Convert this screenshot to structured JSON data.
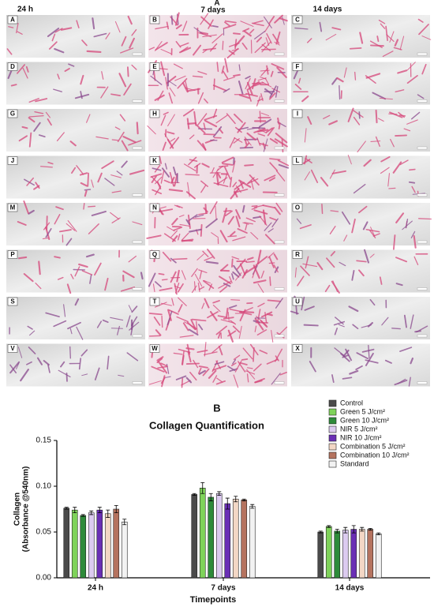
{
  "panel_a": {
    "label": "A",
    "columns": [
      "24 h",
      "7 days",
      "14 days"
    ],
    "tiles": [
      "A",
      "B",
      "C",
      "D",
      "E",
      "F",
      "G",
      "H",
      "I",
      "J",
      "K",
      "L",
      "M",
      "N",
      "O",
      "P",
      "Q",
      "R",
      "S",
      "T",
      "U",
      "V",
      "W",
      "X"
    ]
  },
  "chart_data": {
    "type": "bar",
    "panel_label": "B",
    "title": "Collagen Quantification",
    "ylabel": [
      "Collagen",
      "(Absorbance @540nm)"
    ],
    "xlabel": "Timepoints",
    "categories": [
      "24 h",
      "7 days",
      "14 days"
    ],
    "ylim": [
      0,
      0.15
    ],
    "yticks": [
      {
        "value": 0,
        "label": "0.00"
      },
      0.05,
      {
        "value": 0.1,
        "label": "0.10"
      },
      0.15
    ],
    "series": [
      {
        "name": "Control",
        "color": "#4a4a4a",
        "values": [
          0.076,
          0.091,
          0.05
        ],
        "errors": [
          0.001,
          0.001,
          0.001
        ]
      },
      {
        "name": "Green 5 J/cm²",
        "color": "#7fd35a",
        "values": [
          0.074,
          0.098,
          0.056
        ],
        "errors": [
          0.003,
          0.006,
          0.001
        ]
      },
      {
        "name": "Green 10 J/cm²",
        "color": "#2e8b3a",
        "values": [
          0.068,
          0.088,
          0.051
        ],
        "errors": [
          0.001,
          0.004,
          0.002
        ]
      },
      {
        "name": "NIR 5 J/cm²",
        "color": "#dccbf0",
        "values": [
          0.071,
          0.092,
          0.052
        ],
        "errors": [
          0.002,
          0.002,
          0.003
        ]
      },
      {
        "name": "NIR 10 J/cm²",
        "color": "#6a2fb5",
        "values": [
          0.074,
          0.081,
          0.053
        ],
        "errors": [
          0.003,
          0.006,
          0.004
        ]
      },
      {
        "name": "Combination 5 J/cm²",
        "color": "#f3d7c5",
        "values": [
          0.07,
          0.086,
          0.053
        ],
        "errors": [
          0.004,
          0.003,
          0.002
        ]
      },
      {
        "name": "Combination 10 J/cm²",
        "color": "#b5735f",
        "values": [
          0.075,
          0.085,
          0.053
        ],
        "errors": [
          0.004,
          0.001,
          0.001
        ]
      },
      {
        "name": "Standard",
        "color": "#f2f2f2",
        "values": [
          0.061,
          0.078,
          0.048
        ],
        "errors": [
          0.003,
          0.002,
          0.001
        ]
      }
    ]
  }
}
